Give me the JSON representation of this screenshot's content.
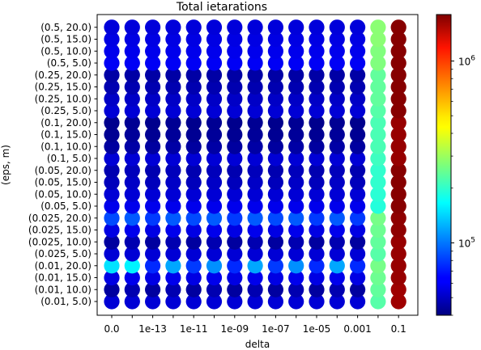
{
  "chart_data": {
    "type": "scatter",
    "title": "Total ietarations",
    "xlabel": "delta",
    "ylabel": "(eps, m)",
    "x_categories": [
      "0.0",
      "",
      "1e-13",
      "",
      "1e-11",
      "",
      "1e-09",
      "",
      "1e-07",
      "",
      "1e-05",
      "",
      "0.001",
      "",
      "0.1"
    ],
    "x_tick_labels_shown": [
      "0.0",
      "1e-13",
      "1e-11",
      "1e-09",
      "1e-07",
      "1e-05",
      "0.001",
      "0.1"
    ],
    "y_categories": [
      "(0.01, 5.0)",
      "(0.01, 10.0)",
      "(0.01, 15.0)",
      "(0.01, 20.0)",
      "(0.025, 5.0)",
      "(0.025, 10.0)",
      "(0.025, 15.0)",
      "(0.025, 20.0)",
      "(0.05, 5.0)",
      "(0.05, 10.0)",
      "(0.05, 15.0)",
      "(0.05, 20.0)",
      "(0.1, 5.0)",
      "(0.1, 10.0)",
      "(0.1, 15.0)",
      "(0.1, 20.0)",
      "(0.25, 5.0)",
      "(0.25, 10.0)",
      "(0.25, 15.0)",
      "(0.25, 20.0)",
      "(0.5, 5.0)",
      "(0.5, 10.0)",
      "(0.5, 15.0)",
      "(0.5, 20.0)"
    ],
    "colorbar": {
      "scale": "log",
      "colormap": "jet",
      "min": 40000,
      "max": 1800000,
      "tick_labels": [
        "10^5",
        "10^6"
      ]
    },
    "values_by_row": [
      [
        55000,
        55000,
        55000,
        55000,
        55000,
        55000,
        55000,
        55000,
        55000,
        55000,
        55000,
        55000,
        55000,
        230000,
        1600000
      ],
      [
        45000,
        48000,
        45000,
        48000,
        45000,
        48000,
        45000,
        48000,
        45000,
        48000,
        45000,
        48000,
        45000,
        240000,
        1600000
      ],
      [
        58000,
        60000,
        58000,
        60000,
        58000,
        60000,
        58000,
        60000,
        58000,
        60000,
        58000,
        60000,
        58000,
        250000,
        1650000
      ],
      [
        150000,
        160000,
        75000,
        120000,
        80000,
        110000,
        75000,
        120000,
        80000,
        110000,
        75000,
        120000,
        75000,
        260000,
        1650000
      ],
      [
        55000,
        55000,
        55000,
        55000,
        55000,
        55000,
        55000,
        55000,
        55000,
        55000,
        55000,
        55000,
        55000,
        230000,
        1650000
      ],
      [
        45000,
        48000,
        45000,
        48000,
        45000,
        48000,
        45000,
        48000,
        45000,
        48000,
        45000,
        48000,
        45000,
        240000,
        1650000
      ],
      [
        58000,
        60000,
        58000,
        60000,
        58000,
        60000,
        58000,
        60000,
        58000,
        60000,
        58000,
        60000,
        58000,
        250000,
        1700000
      ],
      [
        85000,
        90000,
        80000,
        90000,
        85000,
        90000,
        80000,
        90000,
        85000,
        90000,
        80000,
        90000,
        80000,
        260000,
        1700000
      ],
      [
        60000,
        60000,
        60000,
        60000,
        60000,
        60000,
        60000,
        60000,
        60000,
        60000,
        60000,
        60000,
        60000,
        190000,
        1750000
      ],
      [
        55000,
        55000,
        55000,
        55000,
        55000,
        55000,
        55000,
        55000,
        55000,
        55000,
        55000,
        55000,
        55000,
        195000,
        1750000
      ],
      [
        50000,
        52000,
        50000,
        52000,
        50000,
        52000,
        50000,
        52000,
        50000,
        52000,
        50000,
        52000,
        50000,
        200000,
        1750000
      ],
      [
        48000,
        50000,
        48000,
        50000,
        48000,
        50000,
        48000,
        50000,
        48000,
        50000,
        48000,
        50000,
        48000,
        200000,
        1750000
      ],
      [
        55000,
        55000,
        55000,
        55000,
        55000,
        55000,
        55000,
        55000,
        55000,
        55000,
        55000,
        55000,
        55000,
        210000,
        1650000
      ],
      [
        45000,
        46000,
        45000,
        46000,
        45000,
        46000,
        45000,
        46000,
        45000,
        46000,
        45000,
        46000,
        45000,
        220000,
        1650000
      ],
      [
        43000,
        44000,
        43000,
        44000,
        43000,
        44000,
        43000,
        44000,
        43000,
        44000,
        43000,
        44000,
        43000,
        220000,
        1650000
      ],
      [
        42000,
        43000,
        42000,
        43000,
        42000,
        43000,
        42000,
        43000,
        42000,
        43000,
        42000,
        43000,
        42000,
        220000,
        1650000
      ],
      [
        55000,
        55000,
        55000,
        55000,
        55000,
        55000,
        55000,
        55000,
        55000,
        55000,
        55000,
        55000,
        55000,
        230000,
        1750000
      ],
      [
        52000,
        52000,
        52000,
        52000,
        52000,
        52000,
        52000,
        52000,
        52000,
        52000,
        52000,
        52000,
        52000,
        240000,
        1750000
      ],
      [
        48000,
        48000,
        48000,
        48000,
        48000,
        48000,
        48000,
        48000,
        48000,
        48000,
        48000,
        48000,
        48000,
        240000,
        1750000
      ],
      [
        46000,
        46000,
        46000,
        46000,
        46000,
        46000,
        46000,
        46000,
        46000,
        46000,
        46000,
        46000,
        46000,
        240000,
        1750000
      ],
      [
        62000,
        62000,
        62000,
        62000,
        62000,
        62000,
        62000,
        62000,
        62000,
        62000,
        62000,
        62000,
        62000,
        270000,
        1750000
      ],
      [
        60000,
        60000,
        60000,
        60000,
        60000,
        60000,
        60000,
        60000,
        60000,
        60000,
        60000,
        60000,
        60000,
        270000,
        1750000
      ],
      [
        58000,
        58000,
        58000,
        58000,
        58000,
        58000,
        58000,
        58000,
        58000,
        58000,
        58000,
        58000,
        58000,
        280000,
        1750000
      ],
      [
        56000,
        56000,
        56000,
        56000,
        56000,
        56000,
        56000,
        56000,
        56000,
        56000,
        56000,
        56000,
        56000,
        280000,
        1750000
      ]
    ]
  }
}
